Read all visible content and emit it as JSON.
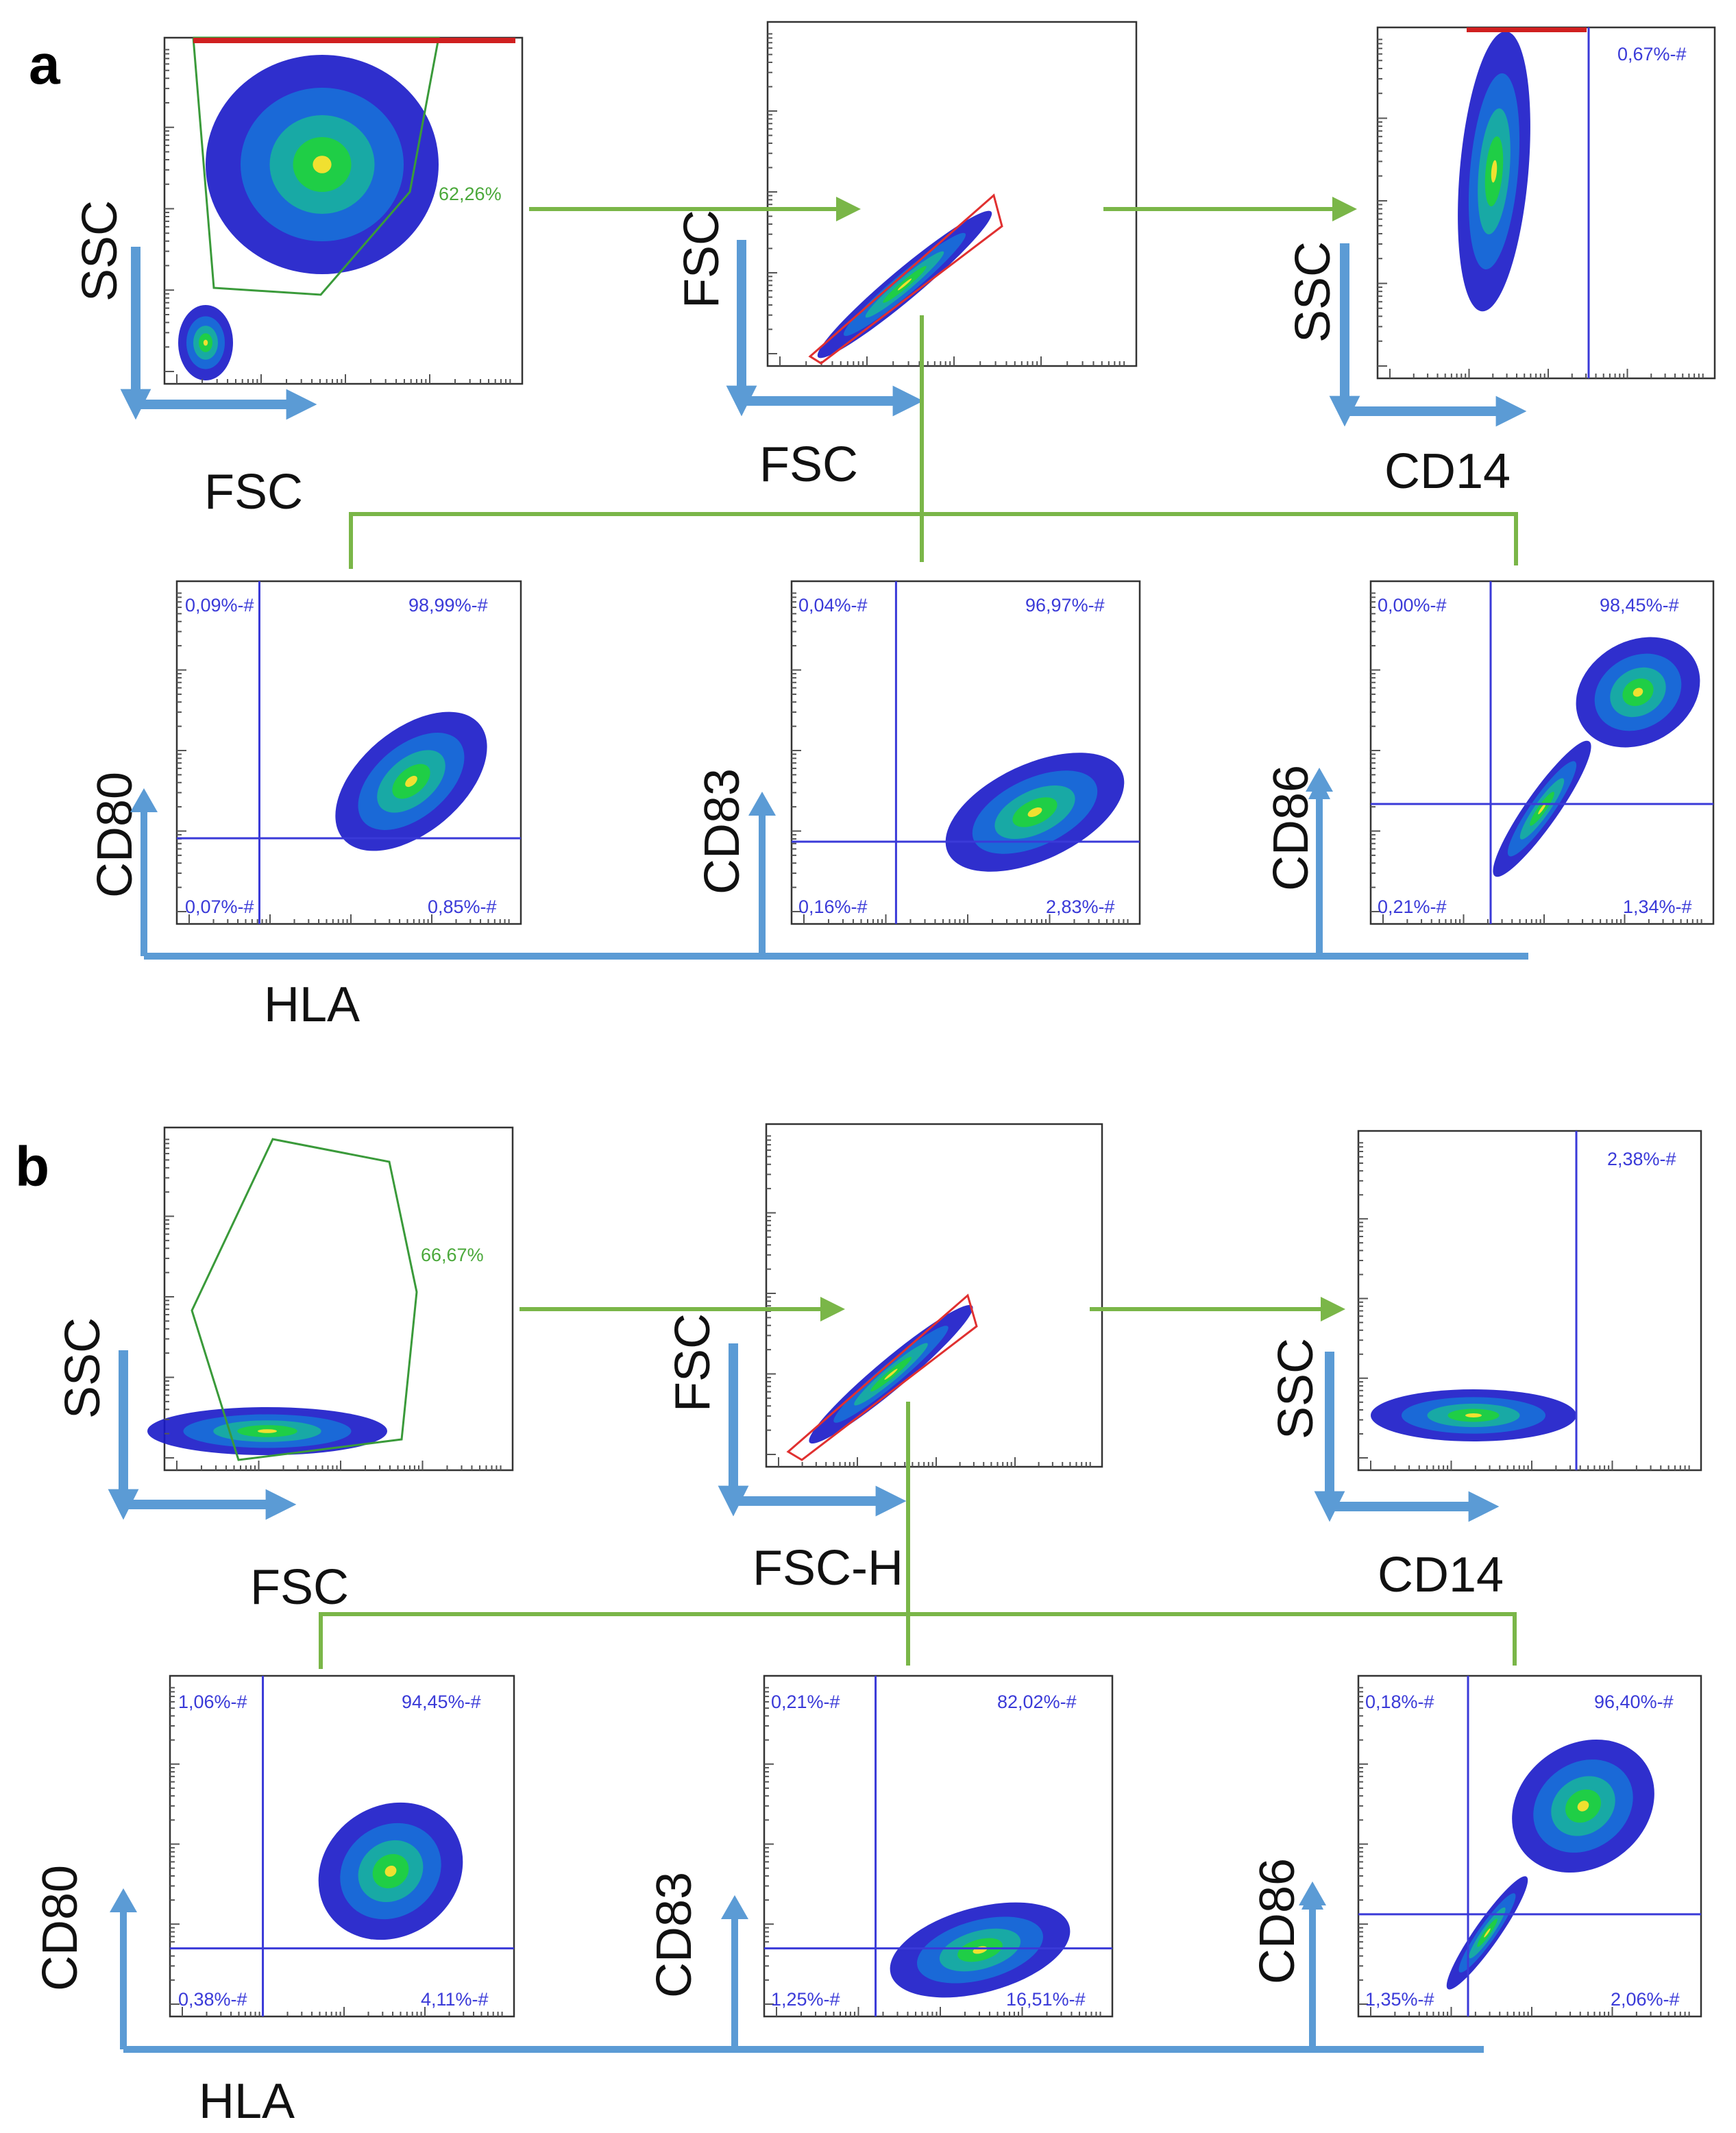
{
  "colors": {
    "quadrant_line": "#3a3ad8",
    "gate_line": "#3a9a3a",
    "gate_label": "#4aa83a",
    "flow_arrow": "#7ab648",
    "axis_arrow": "#5b9bd5",
    "singlet_gate": "#e03030",
    "density_low": "#1818c8",
    "density_high": "#20d040"
  },
  "panels": [
    {
      "letter": "a",
      "chart_data": [
        {
          "id": "a-fsc-ssc",
          "type": "scatter",
          "xlabel": "FSC",
          "ylabel": "SSC",
          "gate_label": "62,26%",
          "gate_fraction": 62.26
        },
        {
          "id": "a-singlets",
          "type": "scatter",
          "xlabel": "FSC",
          "ylabel": "FSC"
        },
        {
          "id": "a-cd14",
          "type": "scatter",
          "xlabel": "CD14",
          "ylabel": "SSC",
          "gate_label": "0,67%-#",
          "gate_fraction": 0.67
        },
        {
          "id": "a-cd80",
          "type": "scatter",
          "xlabel": "HLA",
          "ylabel": "CD80",
          "quadrant_split": {
            "x": 0.24,
            "y": 0.25
          },
          "quadrants": {
            "ul": "0,09%-#",
            "ur": "98,99%-#",
            "ll": "0,07%-#",
            "lr": "0,85%-#"
          },
          "quadrant_values": {
            "ul": 0.09,
            "ur": 98.99,
            "ll": 0.07,
            "lr": 0.85
          }
        },
        {
          "id": "a-cd83",
          "type": "scatter",
          "ylabel": "CD83",
          "quadrant_split": {
            "x": 0.3,
            "y": 0.24
          },
          "quadrants": {
            "ul": "0,04%-#",
            "ur": "96,97%-#",
            "ll": "0,16%-#",
            "lr": "2,83%-#"
          },
          "quadrant_values": {
            "ul": 0.04,
            "ur": 96.97,
            "ll": 0.16,
            "lr": 2.83
          }
        },
        {
          "id": "a-cd86",
          "type": "scatter",
          "ylabel": "CD86",
          "quadrant_split": {
            "x": 0.35,
            "y": 0.35
          },
          "quadrants": {
            "ul": "0,00%-#",
            "ur": "98,45%-#",
            "ll": "0,21%-#",
            "lr": "1,34%-#"
          },
          "quadrant_values": {
            "ul": 0.0,
            "ur": 98.45,
            "ll": 0.21,
            "lr": 1.34
          }
        }
      ]
    },
    {
      "letter": "b",
      "chart_data": [
        {
          "id": "b-fsc-ssc",
          "type": "scatter",
          "xlabel": "FSC",
          "ylabel": "SSC",
          "gate_label": "66,67%",
          "gate_fraction": 66.67
        },
        {
          "id": "b-singlets",
          "type": "scatter",
          "xlabel": "FSC-H",
          "ylabel": "FSC"
        },
        {
          "id": "b-cd14",
          "type": "scatter",
          "xlabel": "CD14",
          "ylabel": "SSC",
          "gate_label": "2,38%-#",
          "gate_fraction": 2.38
        },
        {
          "id": "b-cd80",
          "type": "scatter",
          "xlabel": "HLA",
          "ylabel": "CD80",
          "quadrant_split": {
            "x": 0.27,
            "y": 0.2
          },
          "quadrants": {
            "ul": "1,06%-#",
            "ur": "94,45%-#",
            "ll": "0,38%-#",
            "lr": "4,11%-#"
          },
          "quadrant_values": {
            "ul": 1.06,
            "ur": 94.45,
            "ll": 0.38,
            "lr": 4.11
          }
        },
        {
          "id": "b-cd83",
          "type": "scatter",
          "ylabel": "CD83",
          "quadrant_split": {
            "x": 0.32,
            "y": 0.2
          },
          "quadrants": {
            "ul": "0,21%-#",
            "ur": "82,02%-#",
            "ll": "1,25%-#",
            "lr": "16,51%-#"
          },
          "quadrant_values": {
            "ul": 0.21,
            "ur": 82.02,
            "ll": 1.25,
            "lr": 16.51
          }
        },
        {
          "id": "b-cd86",
          "type": "scatter",
          "ylabel": "CD86",
          "quadrant_split": {
            "x": 0.32,
            "y": 0.3
          },
          "quadrants": {
            "ul": "0,18%-#",
            "ur": "96,40%-#",
            "ll": "1,35%-#",
            "lr": "2,06%-#"
          },
          "quadrant_values": {
            "ul": 0.18,
            "ur": 96.4,
            "ll": 1.35,
            "lr": 2.06
          }
        }
      ]
    }
  ]
}
